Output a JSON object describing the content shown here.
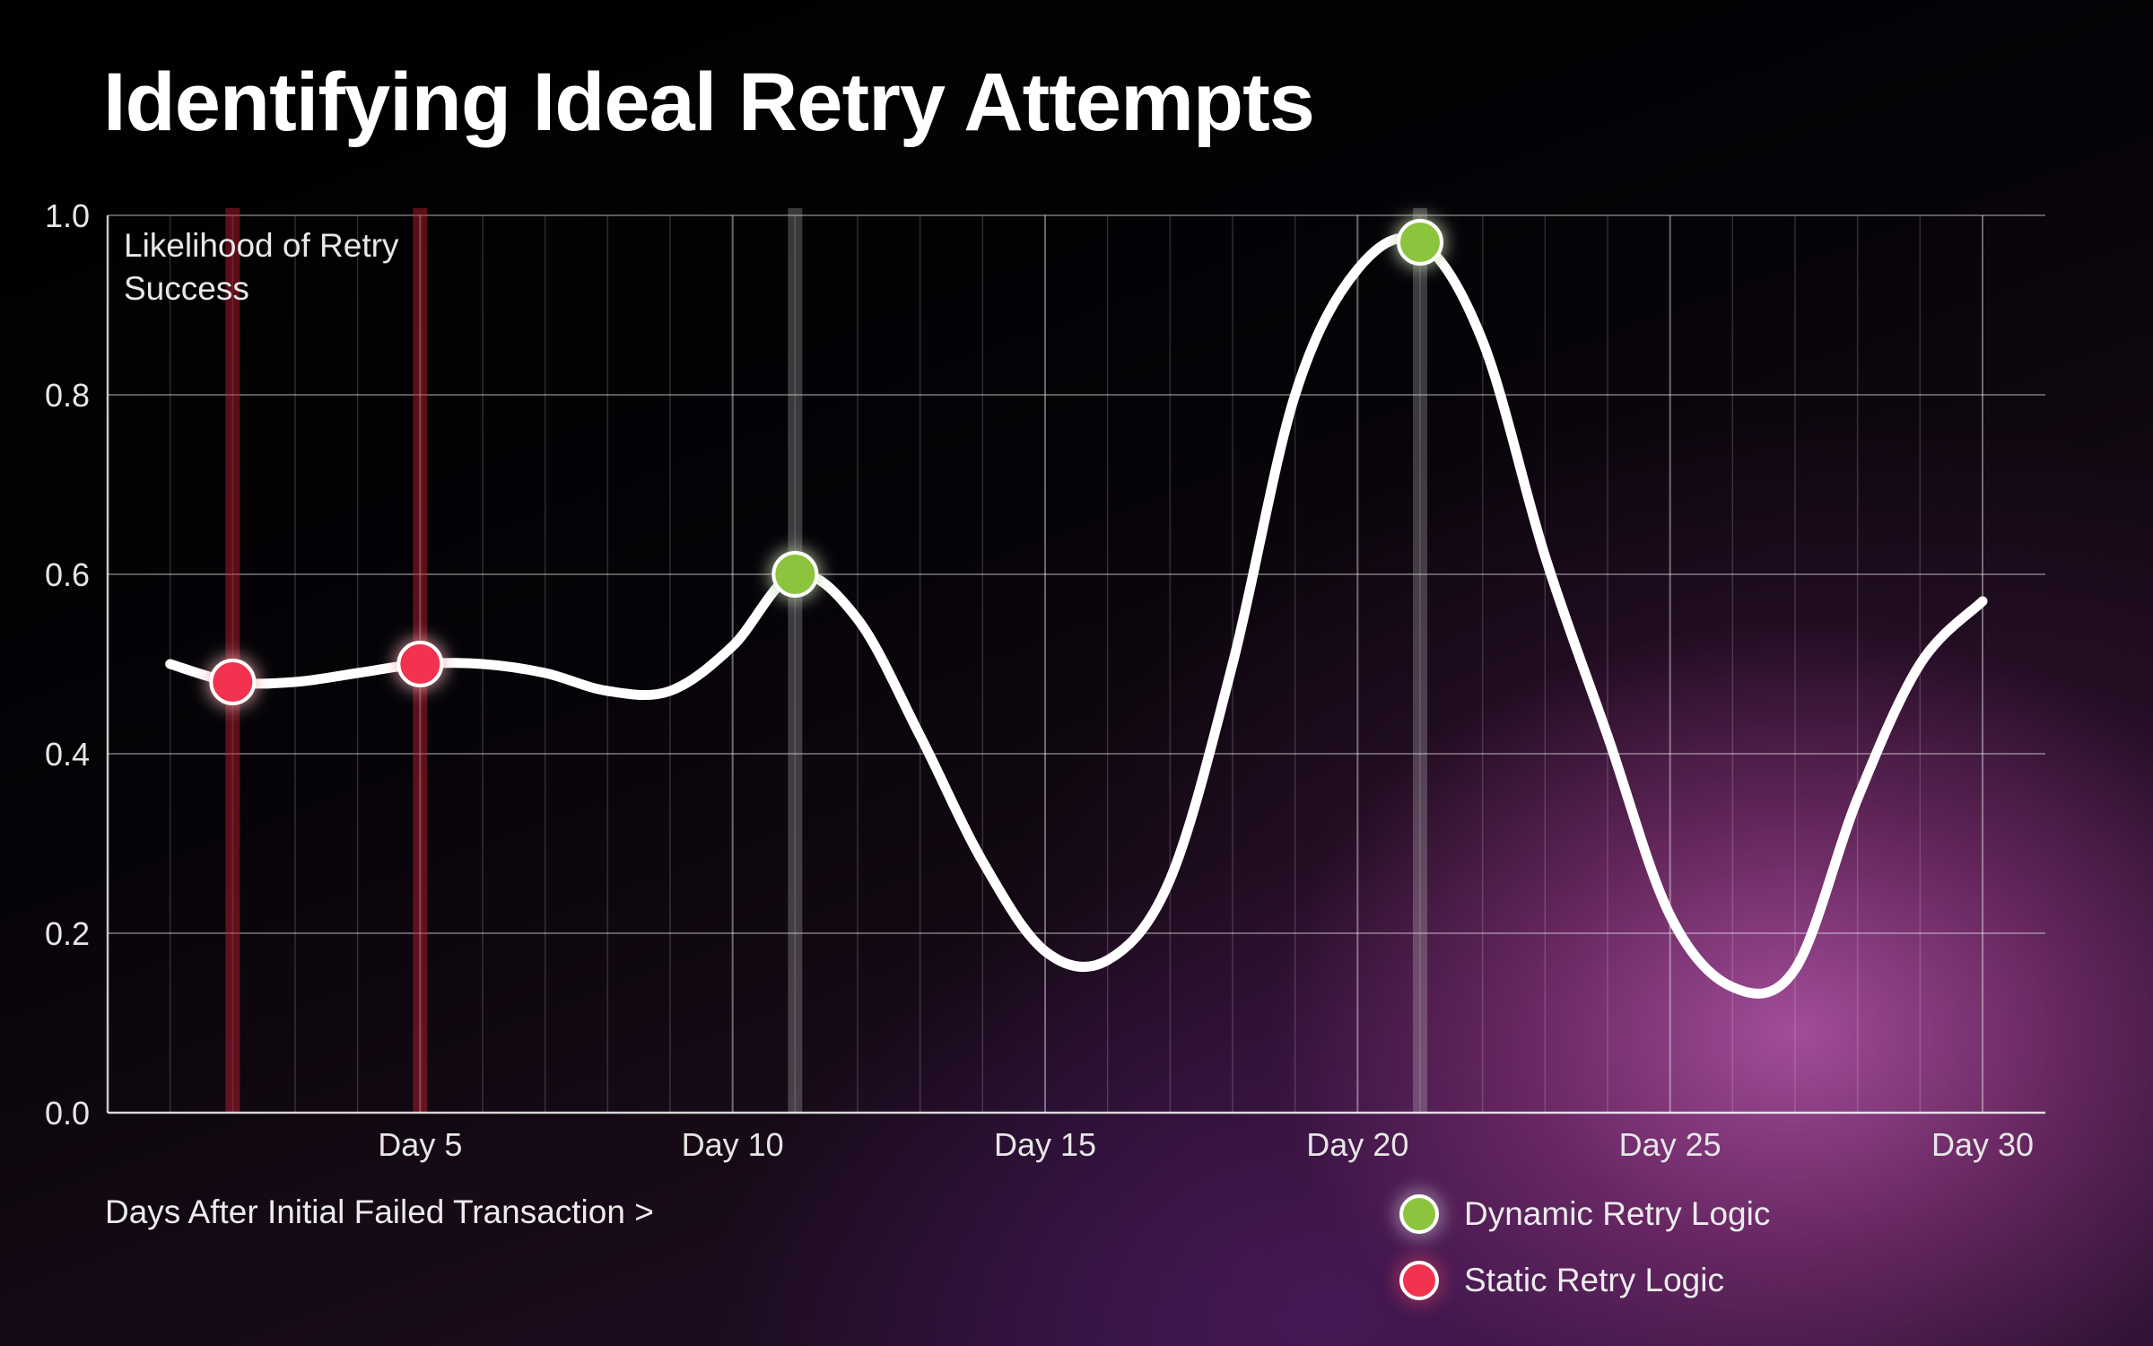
{
  "chart_data": {
    "type": "line",
    "title": "Identifying Ideal Retry Attempts",
    "annotation": "Likelihood of Retry Success",
    "xlabel": "Days After Initial Failed Transaction >",
    "ylabel": "",
    "xlim": [
      0,
      30
    ],
    "ylim": [
      0,
      1.0
    ],
    "y_ticks": [
      "0.0",
      "0.2",
      "0.4",
      "0.6",
      "0.8",
      "1.0"
    ],
    "x_ticks": [
      {
        "day": 5,
        "label": "Day 5"
      },
      {
        "day": 10,
        "label": "Day 10"
      },
      {
        "day": 15,
        "label": "Day 15"
      },
      {
        "day": 20,
        "label": "Day 20"
      },
      {
        "day": 25,
        "label": "Day 25"
      },
      {
        "day": 30,
        "label": "Day 30"
      }
    ],
    "grid": true,
    "series": [
      {
        "x": [
          1,
          2,
          3,
          4,
          5,
          6,
          7,
          8,
          9,
          10,
          11,
          12,
          13,
          14,
          15,
          16,
          17,
          18,
          19,
          20,
          21,
          22,
          23,
          24,
          25,
          26,
          27,
          28,
          29,
          30
        ],
        "values": [
          0.5,
          0.48,
          0.48,
          0.49,
          0.5,
          0.5,
          0.49,
          0.47,
          0.47,
          0.52,
          0.6,
          0.55,
          0.42,
          0.28,
          0.18,
          0.17,
          0.26,
          0.5,
          0.8,
          0.94,
          0.97,
          0.86,
          0.62,
          0.42,
          0.22,
          0.14,
          0.16,
          0.35,
          0.5,
          0.57
        ],
        "color": "#ffffff"
      }
    ],
    "markers": [
      {
        "x": 2,
        "y": 0.48,
        "kind": "static"
      },
      {
        "x": 5,
        "y": 0.5,
        "kind": "static"
      },
      {
        "x": 11,
        "y": 0.6,
        "kind": "dynamic"
      },
      {
        "x": 21,
        "y": 0.97,
        "kind": "dynamic"
      }
    ],
    "legend": [
      {
        "label": "Dynamic Retry Logic",
        "color": "#8dc43e"
      },
      {
        "label": "Static Retry Logic",
        "color": "#f2334f"
      }
    ],
    "legend_position": "bottom-right"
  }
}
